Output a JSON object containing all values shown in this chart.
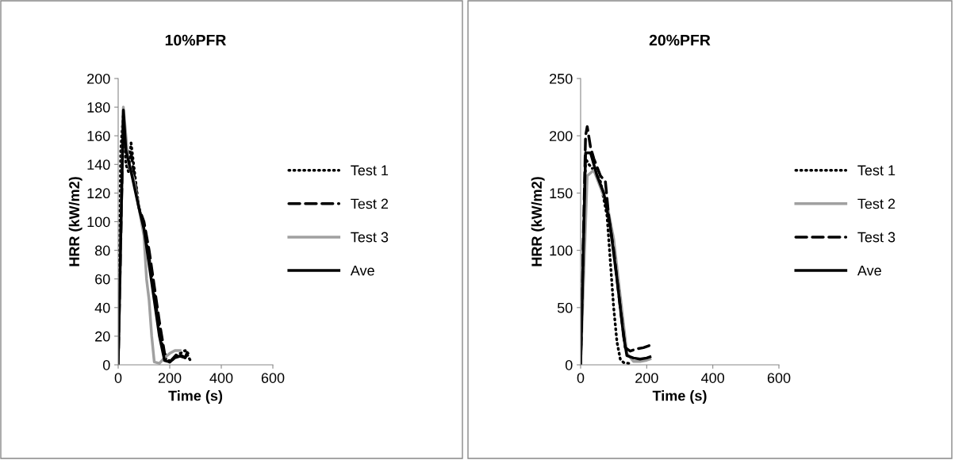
{
  "chart_data": [
    {
      "type": "line",
      "title": "10%PFR",
      "xlabel": "Time (s)",
      "ylabel": "HRR (kW/m2)",
      "xlim": [
        0,
        600
      ],
      "xticks": [
        0,
        200,
        400,
        600
      ],
      "ylim": [
        0,
        200
      ],
      "yticks": [
        0,
        20,
        40,
        60,
        80,
        100,
        120,
        140,
        160,
        180,
        200
      ],
      "grid": false,
      "legend": "right",
      "series": [
        {
          "name": "Test 1",
          "color": "#000000",
          "line_style": "dotted",
          "x": [
            0,
            10,
            20,
            30,
            40,
            50,
            60,
            80,
            100,
            120,
            140,
            160,
            180,
            200,
            220,
            240,
            260,
            280
          ],
          "values": [
            0,
            150,
            175,
            140,
            135,
            155,
            140,
            110,
            95,
            75,
            50,
            25,
            5,
            2,
            5,
            8,
            10,
            3
          ]
        },
        {
          "name": "Test 2",
          "color": "#000000",
          "line_style": "dashed",
          "x": [
            0,
            20,
            30,
            50,
            80,
            100,
            120,
            140,
            160,
            180,
            200,
            230,
            260,
            275
          ],
          "values": [
            0,
            172,
            150,
            148,
            110,
            100,
            80,
            55,
            30,
            8,
            2,
            8,
            5,
            12
          ]
        },
        {
          "name": "Test 3",
          "color": "#a0a0a0",
          "line_style": "solid",
          "x": [
            0,
            20,
            40,
            60,
            80,
            100,
            110,
            120,
            130,
            140,
            160,
            180,
            200,
            220,
            240
          ],
          "values": [
            0,
            180,
            140,
            130,
            110,
            90,
            60,
            45,
            20,
            2,
            1,
            5,
            8,
            10,
            10
          ]
        },
        {
          "name": "Ave",
          "color": "#000000",
          "line_style": "solid",
          "x": [
            0,
            20,
            30,
            50,
            80,
            100,
            120,
            140,
            160,
            180,
            200,
            220,
            240,
            260,
            270
          ],
          "values": [
            0,
            178,
            150,
            135,
            110,
            95,
            70,
            45,
            20,
            3,
            2,
            5,
            6,
            5,
            8
          ]
        }
      ]
    },
    {
      "type": "line",
      "title": "20%PFR",
      "xlabel": "Time (s)",
      "ylabel": "HRR (kW/m2)",
      "xlim": [
        0,
        600
      ],
      "xticks": [
        0,
        200,
        400,
        600
      ],
      "ylim": [
        0,
        250
      ],
      "yticks": [
        0,
        50,
        100,
        150,
        200,
        250
      ],
      "grid": false,
      "legend": "right",
      "series": [
        {
          "name": "Test 1",
          "color": "#000000",
          "line_style": "dotted",
          "x": [
            0,
            15,
            25,
            40,
            60,
            80,
            90,
            100,
            110,
            120,
            130,
            150
          ],
          "values": [
            0,
            180,
            175,
            170,
            160,
            130,
            90,
            50,
            20,
            5,
            2,
            1
          ]
        },
        {
          "name": "Test 2",
          "color": "#a0a0a0",
          "line_style": "solid",
          "x": [
            0,
            20,
            40,
            60,
            80,
            100,
            120,
            140,
            160,
            180,
            200,
            210
          ],
          "values": [
            0,
            165,
            170,
            155,
            140,
            110,
            60,
            10,
            3,
            3,
            4,
            5
          ]
        },
        {
          "name": "Test 3",
          "color": "#000000",
          "line_style": "dashed",
          "x": [
            0,
            15,
            20,
            30,
            40,
            60,
            75,
            85,
            100,
            120,
            135,
            150,
            170,
            190,
            210
          ],
          "values": [
            0,
            200,
            208,
            190,
            180,
            165,
            160,
            130,
            100,
            50,
            15,
            12,
            14,
            15,
            17
          ]
        },
        {
          "name": "Ave",
          "color": "#000000",
          "line_style": "solid",
          "x": [
            0,
            15,
            30,
            50,
            70,
            90,
            110,
            130,
            140,
            160,
            180,
            200,
            210
          ],
          "values": [
            0,
            185,
            185,
            165,
            150,
            120,
            75,
            25,
            8,
            6,
            5,
            6,
            7
          ]
        }
      ]
    }
  ]
}
